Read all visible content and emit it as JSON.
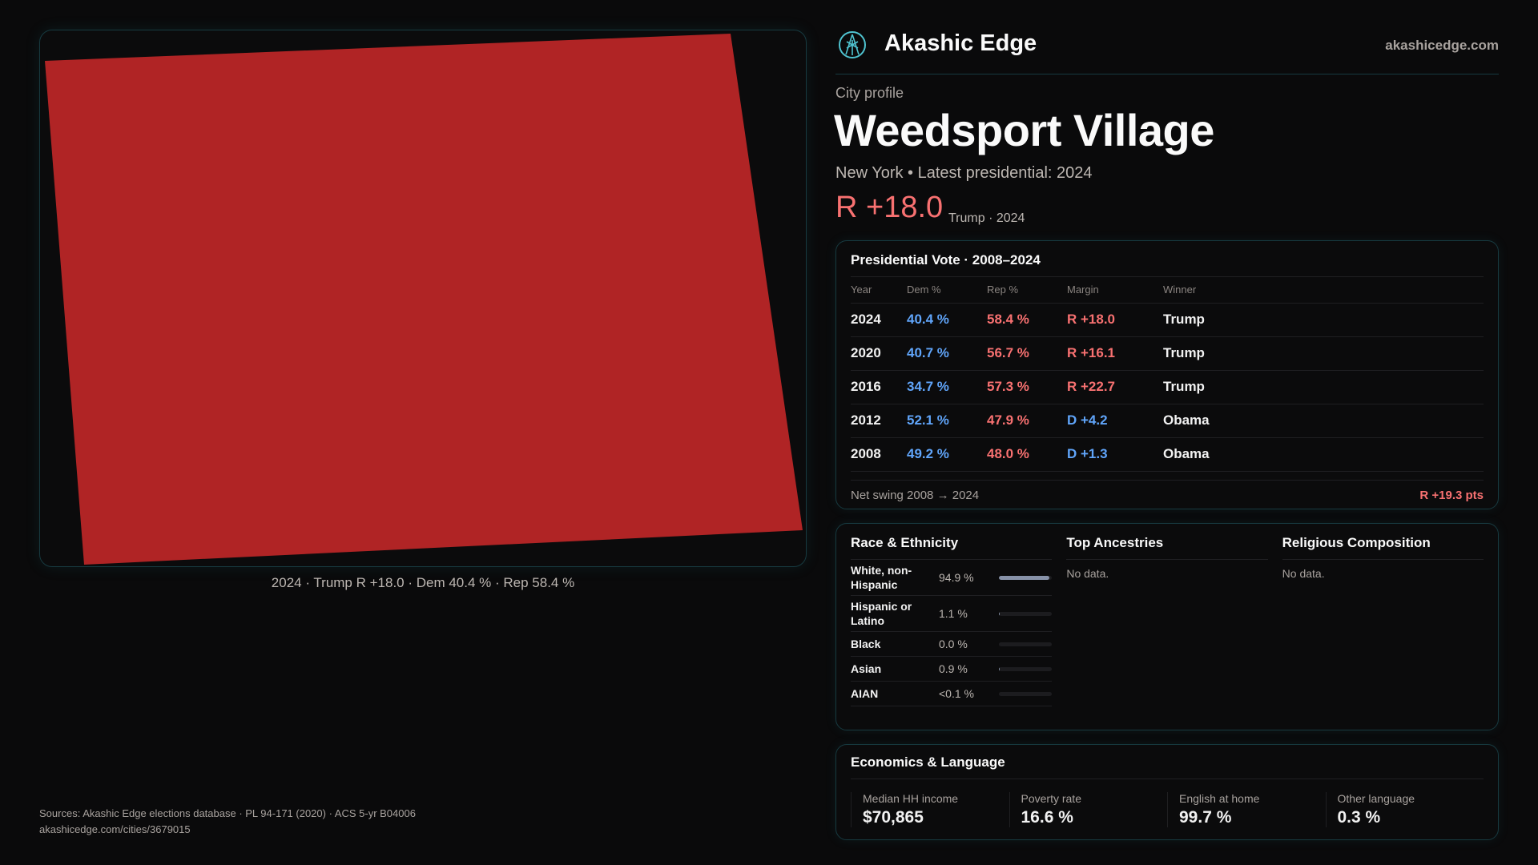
{
  "brand": {
    "name": "Akashic Edge",
    "site": "akashicedge.com",
    "logo_icon": "akashic-logo-icon"
  },
  "map": {
    "fill": "#b02425",
    "caption": "2024 · Trump R +18.0 · Dem 40.4 % · Rep 58.4 %"
  },
  "profile": {
    "eyebrow": "City profile",
    "title": "Weedsport Village",
    "subtitle": "New York • Latest presidential: 2024",
    "margin": "R +18.0",
    "margin_note": "Trump · 2024"
  },
  "vote": {
    "title": "Presidential Vote · 2008–2024",
    "headers": [
      "Year",
      "Dem %",
      "Rep %",
      "Margin",
      "Winner"
    ],
    "rows": [
      {
        "year": "2024",
        "dem": "40.4 %",
        "rep": "58.4 %",
        "margin": "R +18.0",
        "party": "rep",
        "winner": "Trump"
      },
      {
        "year": "2020",
        "dem": "40.7 %",
        "rep": "56.7 %",
        "margin": "R +16.1",
        "party": "rep",
        "winner": "Trump"
      },
      {
        "year": "2016",
        "dem": "34.7 %",
        "rep": "57.3 %",
        "margin": "R +22.7",
        "party": "rep",
        "winner": "Trump"
      },
      {
        "year": "2012",
        "dem": "52.1 %",
        "rep": "47.9 %",
        "margin": "D +4.2",
        "party": "dem",
        "winner": "Obama"
      },
      {
        "year": "2008",
        "dem": "49.2 %",
        "rep": "48.0 %",
        "margin": "D +1.3",
        "party": "dem",
        "winner": "Obama"
      }
    ],
    "swing_label": "Net swing 2008 → 2024",
    "swing_value": "R +19.3 pts"
  },
  "race": {
    "title": "Race & Ethnicity",
    "rows": [
      {
        "label": "White, non-Hispanic",
        "value": "94.9 %",
        "pct": 94.9
      },
      {
        "label": "Hispanic or Latino",
        "value": "1.1 %",
        "pct": 1.1
      },
      {
        "label": "Black",
        "value": "0.0 %",
        "pct": 0
      },
      {
        "label": "Asian",
        "value": "0.9 %",
        "pct": 0.9
      },
      {
        "label": "AIAN",
        "value": "<0.1 %",
        "pct": 0.05
      }
    ]
  },
  "ancestry": {
    "title": "Top Ancestries",
    "empty": "No data."
  },
  "religion": {
    "title": "Religious Composition",
    "empty": "No data."
  },
  "econ": {
    "title": "Economics & Language",
    "stats": [
      {
        "label": "Median HH income",
        "value": "$70,865"
      },
      {
        "label": "Poverty rate",
        "value": "16.6 %"
      },
      {
        "label": "English at home",
        "value": "99.7 %"
      },
      {
        "label": "Other language",
        "value": "0.3 %"
      }
    ]
  },
  "sources": {
    "line": "Sources: Akashic Edge elections database · PL 94-171 (2020) · ACS 5-yr B04006",
    "url": "akashicedge.com/cities/3679015"
  }
}
